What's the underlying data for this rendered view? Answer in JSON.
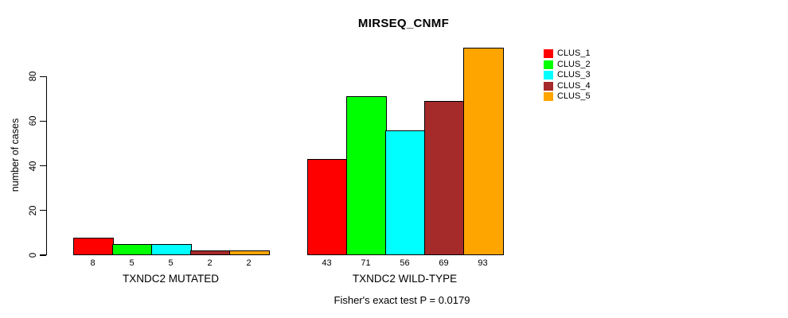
{
  "background": "#FFFFFF",
  "chart_data": {
    "type": "bar",
    "title": "MIRSEQ_CNMF",
    "xlabel": "",
    "ylabel": "number of cases",
    "ylim": [
      0,
      93
    ],
    "yticks": [
      0,
      20,
      40,
      60,
      80
    ],
    "grid": false,
    "bar_border_color": "#000000",
    "categories": [
      "TXNDC2 MUTATED",
      "TXNDC2 WILD-TYPE"
    ],
    "groups": [
      {
        "label": "TXNDC2 MUTATED",
        "values": [
          8,
          5,
          5,
          2,
          2
        ]
      },
      {
        "label": "TXNDC2 WILD-TYPE",
        "values": [
          43,
          71,
          56,
          69,
          93
        ]
      }
    ],
    "series": [
      {
        "name": "CLUS_1",
        "color": "#FF0000",
        "values": [
          8,
          43
        ]
      },
      {
        "name": "CLUS_2",
        "color": "#00FF00",
        "values": [
          5,
          71
        ]
      },
      {
        "name": "CLUS_3",
        "color": "#00FFFF",
        "values": [
          5,
          56
        ]
      },
      {
        "name": "CLUS_4",
        "color": "#A52A2A",
        "values": [
          2,
          69
        ]
      },
      {
        "name": "CLUS_5",
        "color": "#FFA500",
        "values": [
          2,
          93
        ]
      }
    ],
    "legend": {
      "position": "top-right",
      "entries": [
        {
          "label": "CLUS_1",
          "color": "#FF0000"
        },
        {
          "label": "CLUS_2",
          "color": "#00FF00"
        },
        {
          "label": "CLUS_3",
          "color": "#00FFFF"
        },
        {
          "label": "CLUS_4",
          "color": "#A52A2A"
        },
        {
          "label": "CLUS_5",
          "color": "#FFA500"
        }
      ]
    },
    "annotations": [
      "Fisher's exact test P = 0.0179"
    ],
    "footer": "Fisher's exact test P = 0.0179"
  }
}
